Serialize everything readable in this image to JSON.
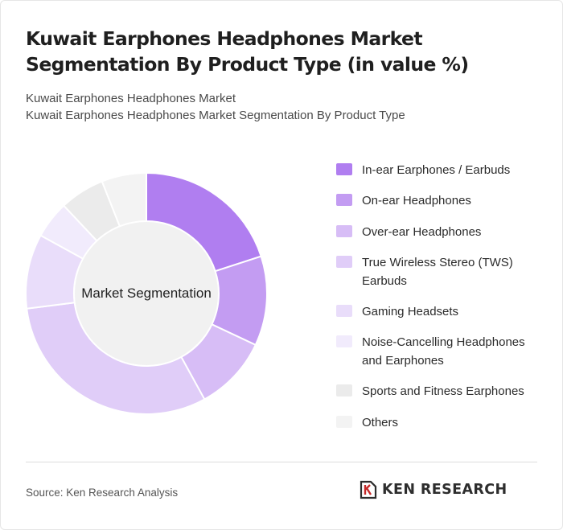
{
  "title": "Kuwait Earphones Headphones Market Segmentation By Product Type (in value %)",
  "subtitle_1": "Kuwait Earphones Headphones Market",
  "subtitle_2": "Kuwait Earphones Headphones Market Segmentation By Product Type",
  "source": "Source: Ken Research Analysis",
  "logo_text": "KEN RESEARCH",
  "chart_data": {
    "type": "pie",
    "center_label": "Market Segmentation",
    "categories": [
      "In-ear Earphones / Earbuds",
      "On-ear Headphones",
      "Over-ear Headphones",
      "True Wireless Stereo (TWS) Earbuds",
      "Gaming Headsets",
      "Noise-Cancelling Headphones and Earphones",
      "Sports and Fitness Earphones",
      "Others"
    ],
    "values": [
      20,
      12,
      10,
      31,
      10,
      5,
      6,
      6
    ],
    "colors": [
      "#b07ef0",
      "#c39cf2",
      "#d7bdf6",
      "#e0cdf8",
      "#e9ddfa",
      "#f1ebfc",
      "#ebebeb",
      "#f3f3f3"
    ]
  }
}
